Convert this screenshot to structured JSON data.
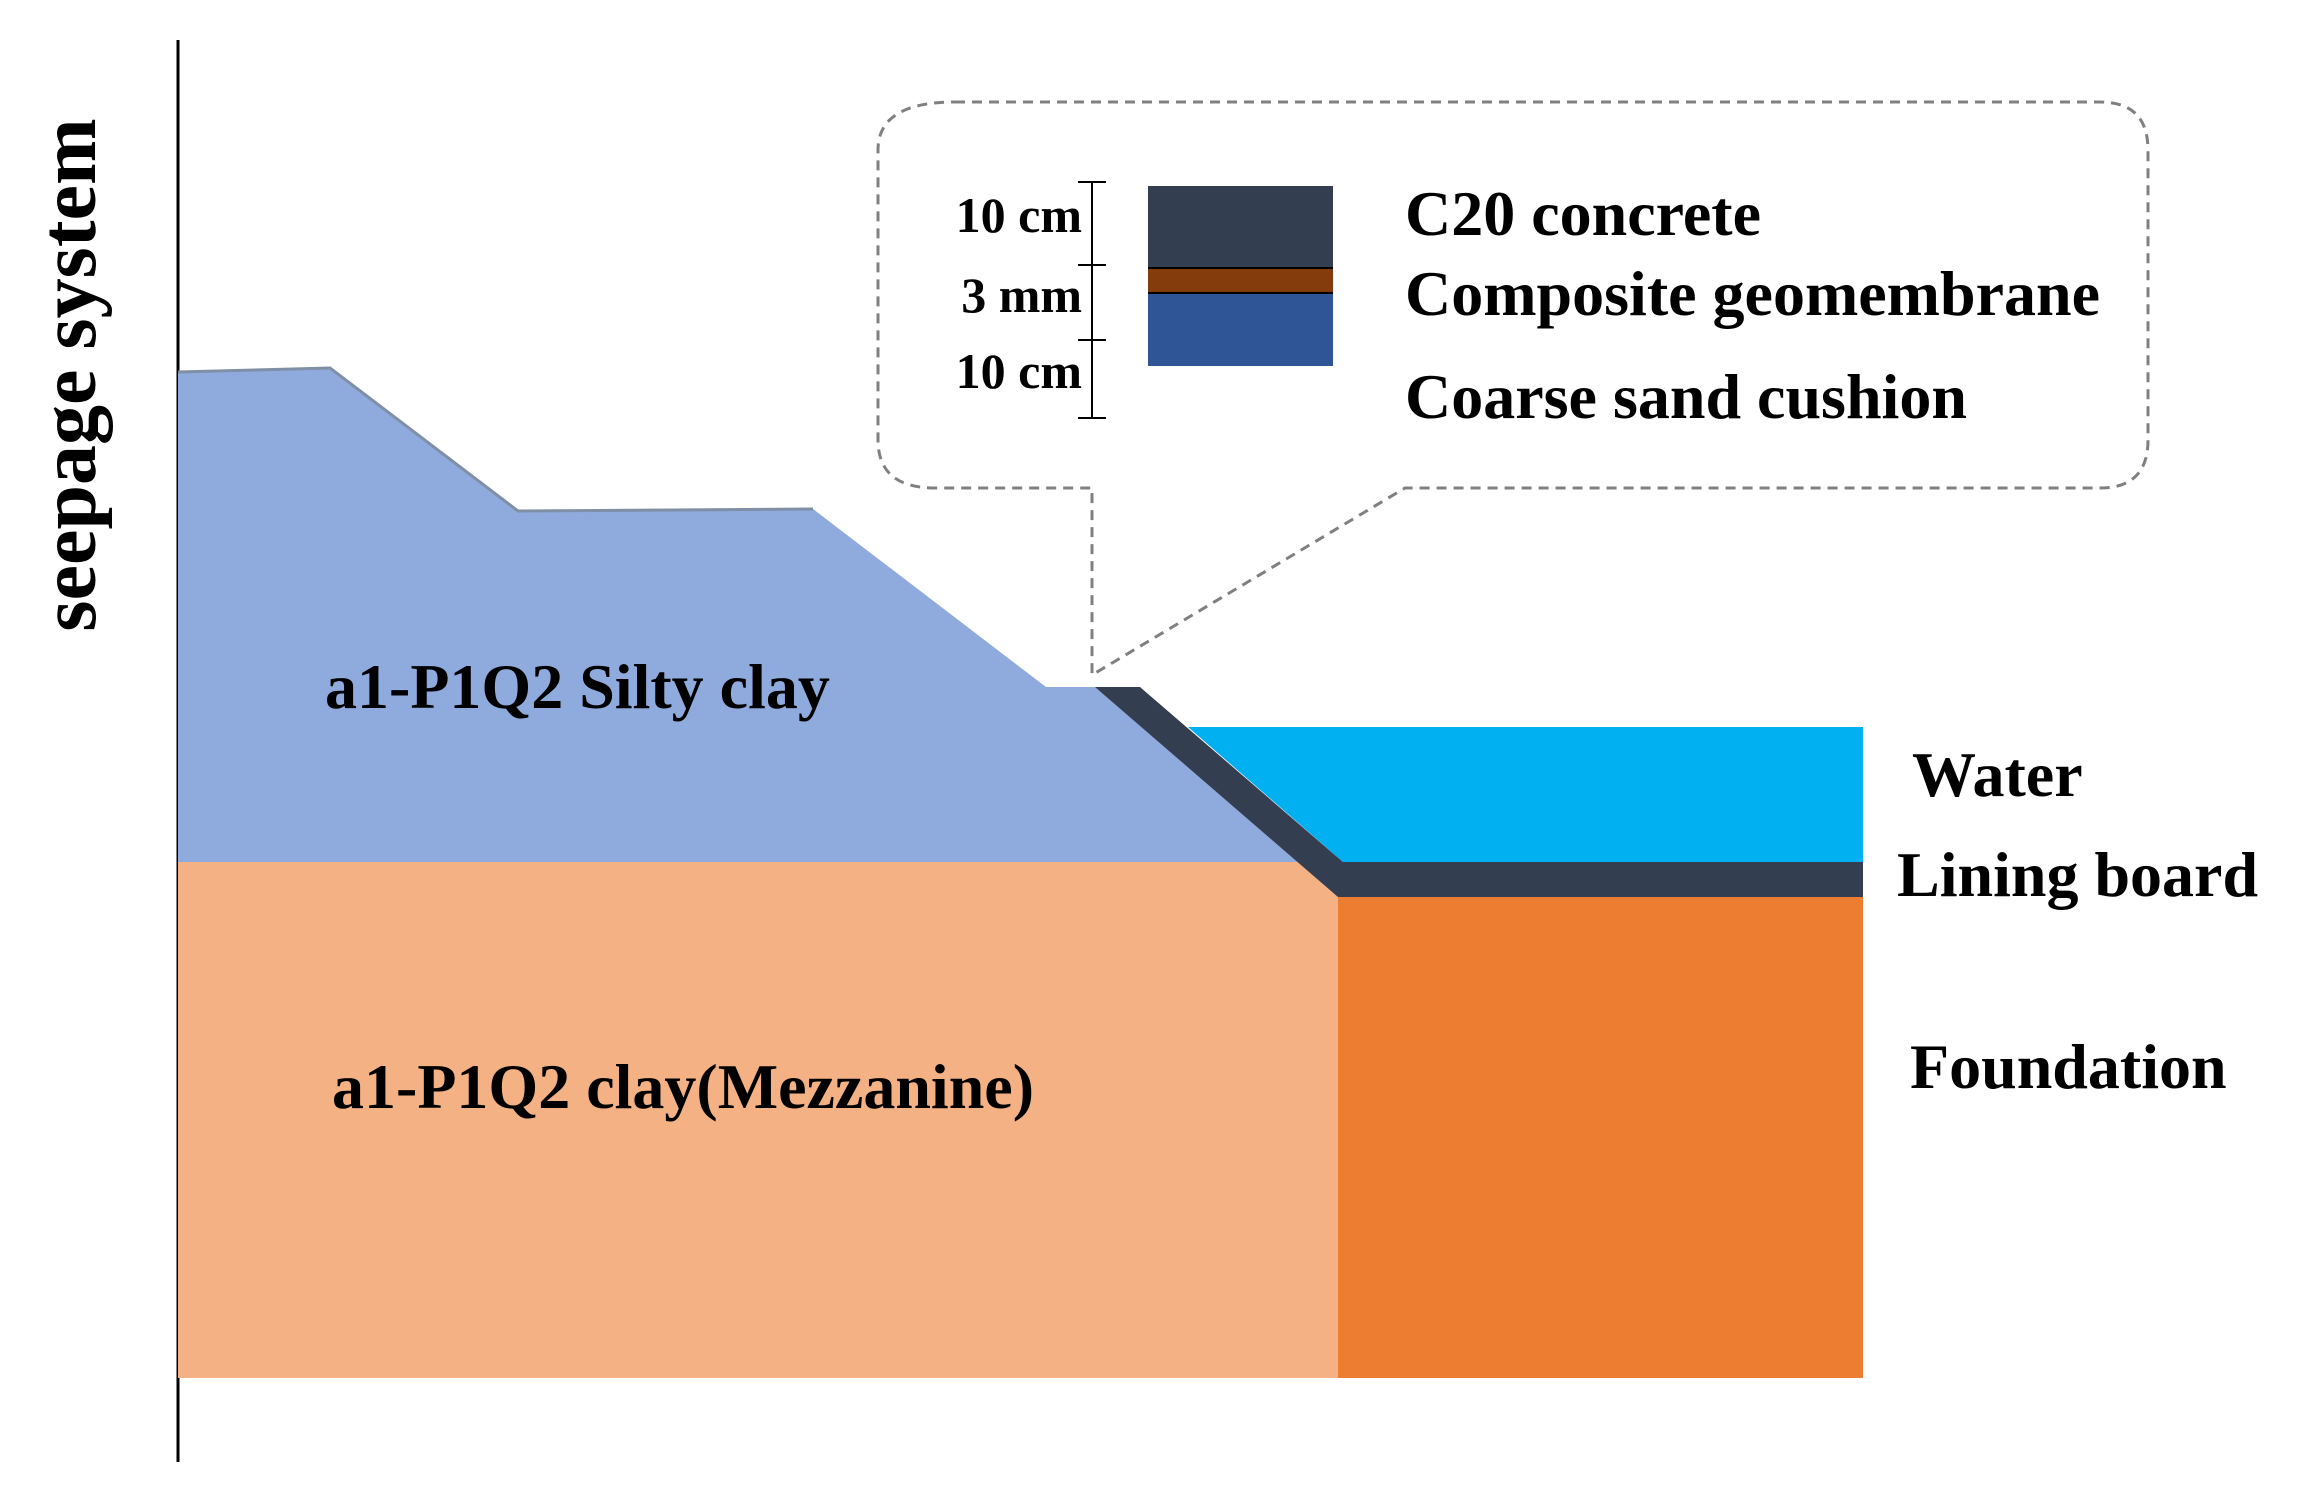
{
  "side_label": "seepage system",
  "layers": {
    "silty_clay": {
      "label": "a1-P1Q2 Silty clay",
      "color": "#8faadc"
    },
    "clay": {
      "label": "a1-P1Q2 clay(Mezzanine)",
      "color": "#f4b183"
    },
    "foundation": {
      "label": "Foundation",
      "color": "#ed7d31"
    },
    "water": {
      "label": "Water",
      "color": "#00b0f0"
    },
    "lining": {
      "label": "Lining board",
      "color": "#333f50"
    }
  },
  "callout": {
    "layers": [
      {
        "thickness": "10 cm",
        "name": "C20 concrete",
        "color": "#333f50"
      },
      {
        "thickness": "3 mm",
        "name": "Composite geomembrane",
        "color": "#843c0c"
      },
      {
        "thickness": "10 cm",
        "name": "Coarse sand cushion",
        "color": "#2f5597"
      }
    ]
  }
}
